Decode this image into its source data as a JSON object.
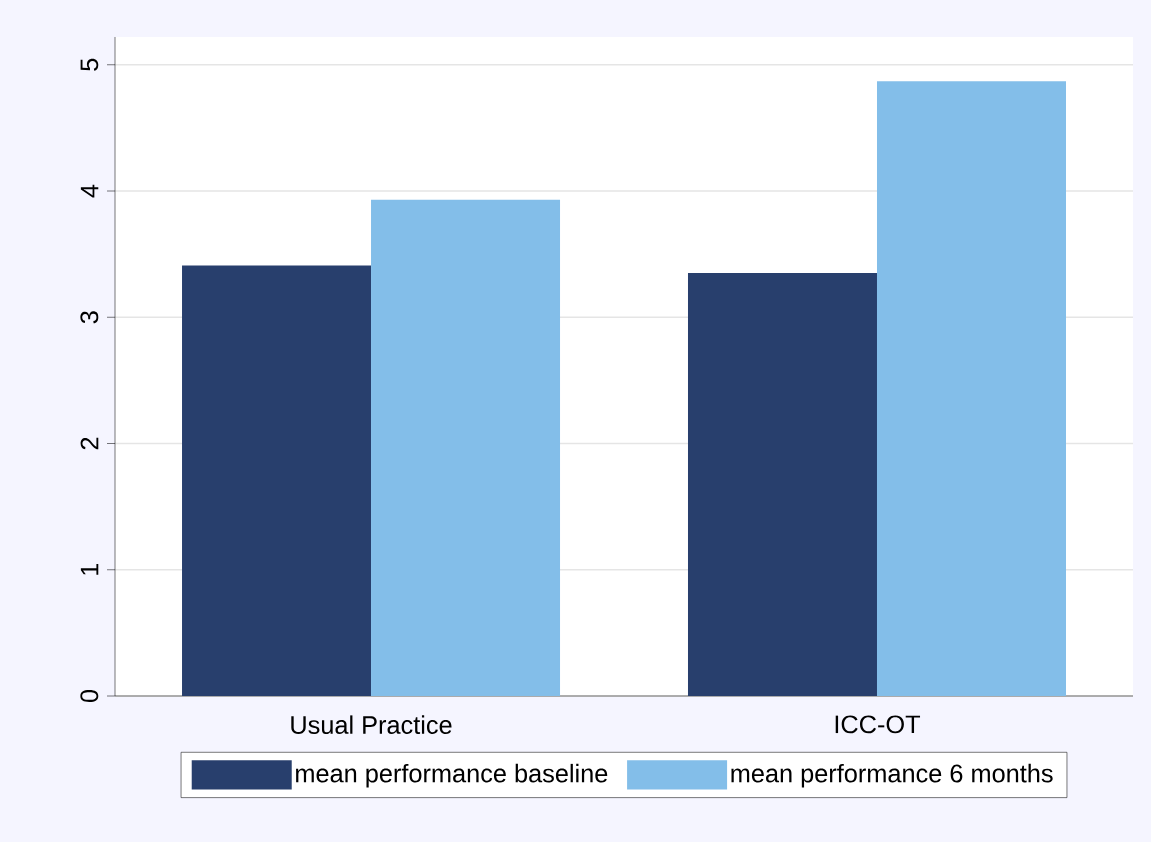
{
  "chart_data": {
    "type": "bar",
    "categories": [
      "Usual Practice",
      "ICC-OT"
    ],
    "series": [
      {
        "name": "mean performance baseline",
        "color": "#283f6d",
        "values": [
          3.41,
          3.35
        ]
      },
      {
        "name": "mean performance 6 months",
        "color": "#83bee9",
        "values": [
          3.93,
          4.87
        ]
      }
    ],
    "ylim": [
      0,
      5.22
    ],
    "yticks": [
      0,
      1,
      2,
      3,
      4,
      5
    ],
    "grid": "y",
    "legend": "bottom"
  }
}
